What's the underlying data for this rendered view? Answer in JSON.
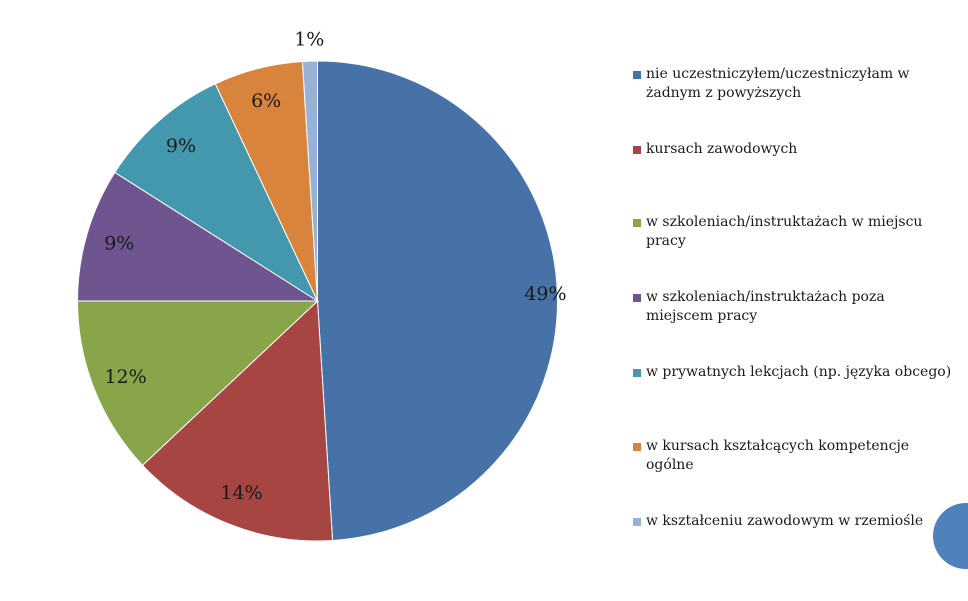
{
  "chart_data": {
    "type": "pie",
    "slices": [
      {
        "label": "nie uczestniczyłem/uczestniczyłam w żadnym z powyższych",
        "value": 49,
        "value_label": "49%",
        "color": "#4672a8"
      },
      {
        "label": "kursach zawodowych",
        "value": 14,
        "value_label": "14%",
        "color": "#a64541"
      },
      {
        "label": "w szkoleniach/instruktażach w miejscu pracy",
        "value": 12,
        "value_label": "12%",
        "color": "#88a54a"
      },
      {
        "label": "w szkoleniach/instruktażach poza miejscem pracy",
        "value": 9,
        "value_label": "9%",
        "color": "#6f5590"
      },
      {
        "label": "w prywatnych lekcjach (np. języka obcego)",
        "value": 9,
        "value_label": "9%",
        "color": "#4398ad"
      },
      {
        "label": "w kursach kształcących kompetencje ogólne",
        "value": 6,
        "value_label": "6%",
        "color": "#d9843c"
      },
      {
        "label": "w kształceniu zawodowym w rzemiośle",
        "value": 1,
        "value_label": "1%",
        "color": "#98b1d6"
      }
    ],
    "legend_position": "right"
  },
  "decor": {
    "corner_circle_color": "#4f81bd"
  }
}
